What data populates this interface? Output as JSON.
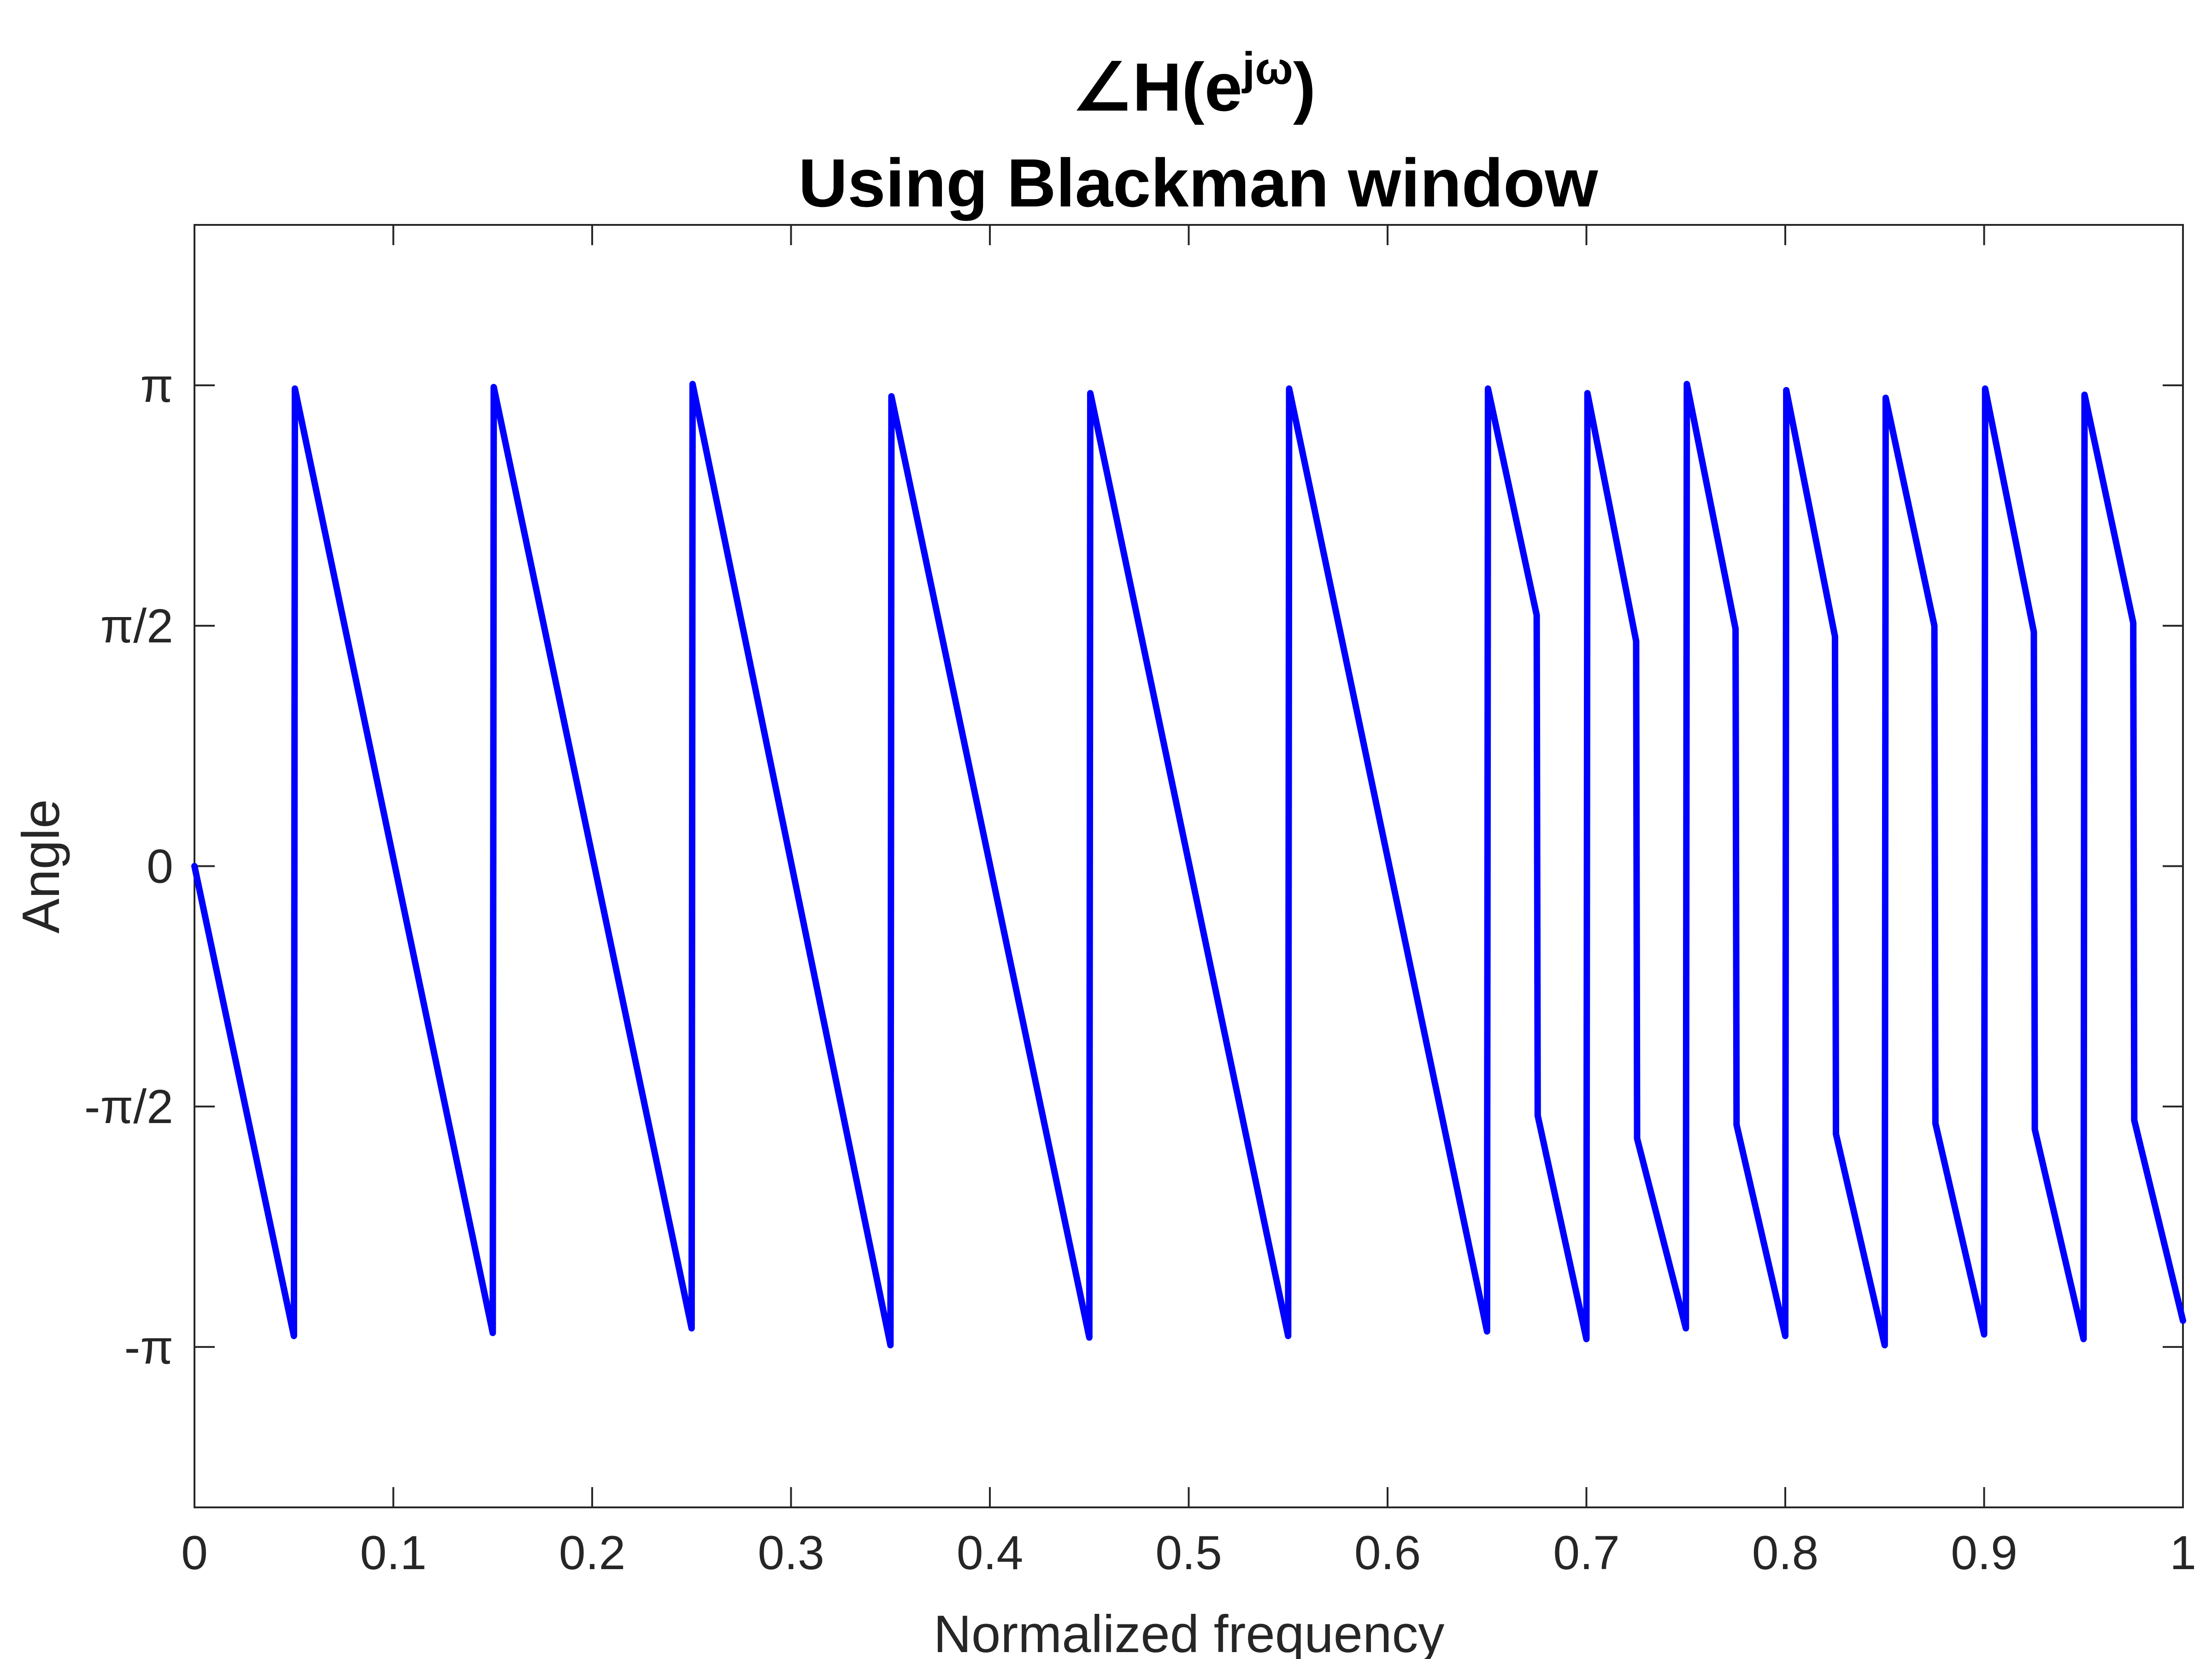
{
  "chart_data": {
    "type": "line",
    "title_symbol": "∠H(e",
    "title_sup": "jω",
    "title_close": ")",
    "subtitle": "Using Blackman window",
    "xlabel": "Normalized frequency",
    "ylabel": "Angle",
    "xlim": [
      0,
      1
    ],
    "ylim": [
      -4.19,
      4.19
    ],
    "xticks": [
      0,
      0.1,
      0.2,
      0.3,
      0.4,
      0.5,
      0.6,
      0.7,
      0.8,
      0.9,
      1
    ],
    "xtick_labels": [
      "0",
      "0.1",
      "0.2",
      "0.3",
      "0.4",
      "0.5",
      "0.6",
      "0.7",
      "0.8",
      "0.9",
      "1"
    ],
    "yticks": [
      -3.1416,
      -1.5708,
      0,
      1.5708,
      3.1416
    ],
    "ytick_labels": [
      "-π",
      "-π/2",
      "0",
      "π/2",
      "π"
    ],
    "grid": false,
    "box": true,
    "line_color": "#0000ff",
    "series": [
      {
        "x": [
          0,
          0.05,
          0.0505,
          0.15,
          0.1505,
          0.25,
          0.2505,
          0.35,
          0.3505,
          0.45,
          0.4505,
          0.55,
          0.5505,
          0.65,
          0.6505,
          0.675,
          0.6755,
          0.7,
          0.7005,
          0.725,
          0.7255,
          0.75,
          0.7505,
          0.775,
          0.7755,
          0.8,
          0.8005,
          0.825,
          0.8255,
          0.85,
          0.8505,
          0.875,
          0.8755,
          0.9,
          0.9005,
          0.925,
          0.9255,
          0.95,
          0.9505,
          0.975,
          0.9755,
          1.0
        ],
        "y": [
          0,
          -3.07,
          3.12,
          -3.05,
          3.13,
          -3.02,
          3.15,
          -3.13,
          3.07,
          -3.08,
          3.09,
          -3.07,
          3.12,
          -3.04,
          3.12,
          1.64,
          -1.63,
          -3.09,
          3.09,
          1.47,
          -1.78,
          -3.02,
          3.15,
          1.55,
          -1.69,
          -3.07,
          3.11,
          1.5,
          -1.75,
          -3.13,
          3.06,
          1.57,
          -1.68,
          -3.06,
          3.12,
          1.53,
          -1.72,
          -3.09,
          3.08,
          1.59,
          -1.66,
          -2.97
        ]
      }
    ]
  }
}
